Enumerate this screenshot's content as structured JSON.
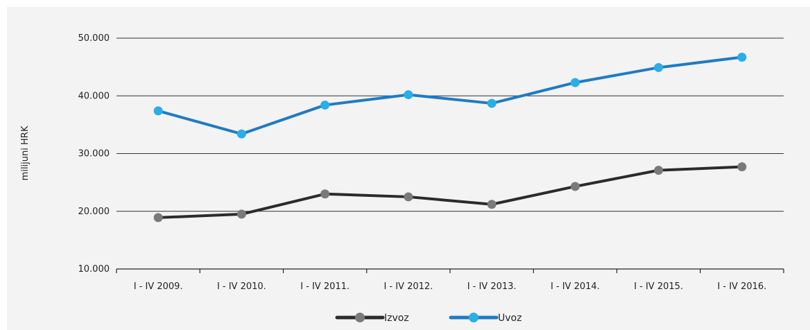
{
  "chart_data": {
    "type": "line",
    "ylabel": "milijuni HRK",
    "categories": [
      "I - IV 2009.",
      "I - IV 2010.",
      "I - IV 2011.",
      "I - IV 2012.",
      "I - IV 2013.",
      "I - IV 2014.",
      "I - IV 2015.",
      "I - IV 2016."
    ],
    "ylim": [
      10000,
      50000
    ],
    "yticks": [
      10000,
      20000,
      30000,
      40000,
      50000
    ],
    "ytick_labels": [
      "10.000",
      "20.000",
      "30.000",
      "40.000",
      "50.000"
    ],
    "grid": true,
    "legend_position": "bottom",
    "series": [
      {
        "name": "Izvoz",
        "color": "#2b2b2b",
        "marker_color": "#7a7a7a",
        "values": [
          18900,
          19500,
          23000,
          22500,
          21200,
          24300,
          27100,
          27700
        ]
      },
      {
        "name": "Uvoz",
        "color": "#1e7bc4",
        "marker_color": "#29aee8",
        "values": [
          37400,
          33400,
          38400,
          40200,
          38700,
          42300,
          44900,
          46700
        ]
      }
    ]
  }
}
